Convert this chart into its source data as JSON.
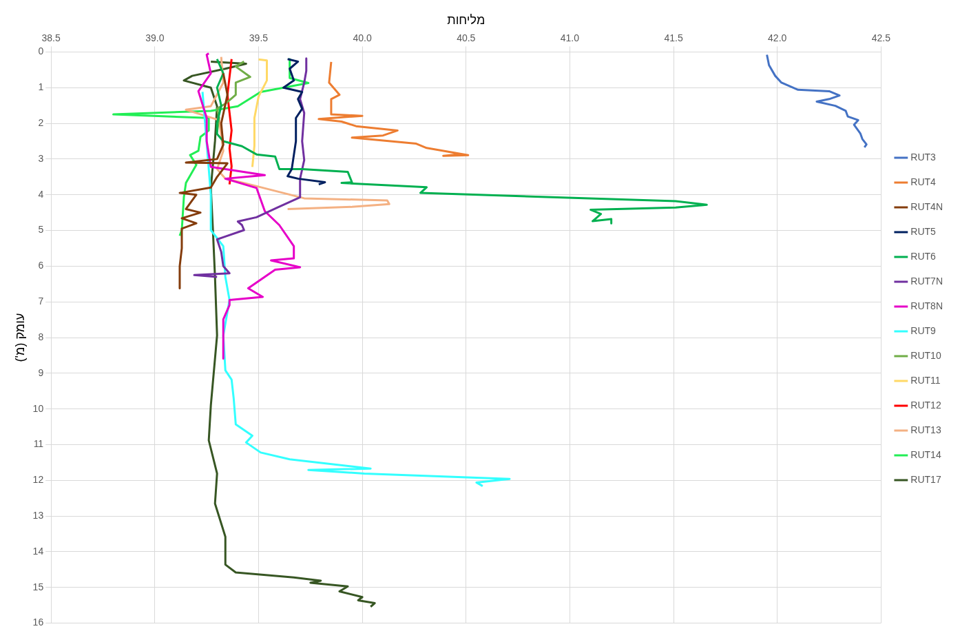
{
  "chart_data": {
    "type": "line",
    "xlabel": "מליחות",
    "ylabel": "עומק (מ')",
    "xlim": [
      38.5,
      42.5
    ],
    "xticks": [
      38.5,
      {
        "value": 39,
        "label": "39.0"
      },
      39.5,
      {
        "value": 40,
        "label": "40.0"
      },
      40.5,
      {
        "value": 41,
        "label": "41.0"
      },
      41.5,
      {
        "value": 42,
        "label": "42.0"
      },
      42.5
    ],
    "ylim": [
      16,
      0
    ],
    "yticks": [
      0,
      1,
      2,
      3,
      4,
      5,
      6,
      7,
      8,
      9,
      10,
      11,
      12,
      13,
      14,
      15,
      16
    ],
    "grid": true,
    "legend": "right",
    "marker": "none",
    "line_style": "solid",
    "series": [
      {
        "name": "RUT3",
        "color": "#4472c4",
        "x": [
          41.95,
          41.96,
          41.99,
          42.02,
          42.1,
          42.25,
          42.3,
          42.25,
          42.19,
          42.28,
          42.33,
          42.34,
          42.39,
          42.37,
          42.4,
          42.41,
          42.43,
          42.42
        ],
        "values": [
          0.08,
          0.37,
          0.67,
          0.86,
          1.06,
          1.1,
          1.22,
          1.32,
          1.39,
          1.51,
          1.65,
          1.81,
          1.91,
          2.04,
          2.28,
          2.44,
          2.59,
          2.67
        ]
      },
      {
        "name": "RUT4",
        "color": "#ed7d31",
        "x": [
          39.85,
          39.84,
          39.89,
          39.85,
          39.85,
          40.0,
          39.79,
          39.9,
          39.97,
          40.17,
          40.1,
          39.95,
          40.26,
          40.31,
          40.51,
          40.39,
          40.46
        ],
        "values": [
          0.28,
          0.86,
          1.2,
          1.32,
          1.75,
          1.79,
          1.88,
          1.95,
          2.08,
          2.2,
          2.34,
          2.4,
          2.57,
          2.69,
          2.89,
          2.91,
          2.87
        ]
      },
      {
        "name": "RUT4N",
        "color": "#843c0c",
        "x": [
          39.33,
          39.35,
          39.32,
          39.33,
          39.3,
          39.15,
          39.35,
          39.3,
          39.27,
          39.12,
          39.2,
          39.15,
          39.22,
          39.13,
          39.2,
          39.13,
          39.13,
          39.12,
          39.12
        ],
        "values": [
          0.6,
          1.2,
          2.0,
          2.6,
          3.0,
          3.1,
          3.12,
          3.5,
          3.8,
          3.95,
          4.0,
          4.4,
          4.5,
          4.66,
          4.8,
          4.95,
          5.5,
          6.0,
          6.62
        ]
      },
      {
        "name": "RUT5",
        "color": "#002060",
        "x": [
          39.64,
          39.69,
          39.65,
          39.67,
          39.62,
          39.71,
          39.69,
          39.71,
          39.68,
          39.68,
          39.66,
          39.64,
          39.69,
          39.82,
          39.79
        ],
        "values": [
          0.2,
          0.27,
          0.47,
          0.8,
          1.0,
          1.12,
          1.32,
          1.59,
          1.85,
          2.5,
          3.28,
          3.48,
          3.55,
          3.65,
          3.71
        ]
      },
      {
        "name": "RUT6",
        "color": "#00b050",
        "x": [
          39.3,
          39.33,
          39.3,
          39.32,
          39.3,
          39.3,
          39.33,
          39.42,
          39.49,
          39.58,
          39.6,
          39.71,
          39.93,
          39.95,
          39.9,
          40.31,
          40.28,
          41.51,
          41.66,
          41.51,
          41.1,
          41.15,
          41.11,
          41.2,
          41.2
        ],
        "values": [
          0.2,
          0.6,
          1.0,
          1.5,
          2.0,
          2.3,
          2.5,
          2.64,
          2.87,
          2.93,
          3.28,
          3.28,
          3.36,
          3.65,
          3.67,
          3.79,
          3.95,
          4.18,
          4.28,
          4.36,
          4.42,
          4.54,
          4.74,
          4.68,
          4.8
        ]
      },
      {
        "name": "RUT7N",
        "color": "#7030a0",
        "x": [
          39.73,
          39.73,
          39.72,
          39.7,
          39.72,
          39.71,
          39.72,
          39.7,
          39.7,
          39.59,
          39.49,
          39.4,
          39.42,
          39.43,
          39.33,
          39.3,
          39.32,
          39.33,
          39.36,
          39.19,
          39.3
        ],
        "values": [
          0.18,
          0.53,
          0.86,
          1.32,
          1.71,
          2.5,
          3.03,
          3.55,
          4.07,
          4.36,
          4.63,
          4.75,
          4.85,
          4.99,
          5.19,
          5.25,
          5.6,
          6.0,
          6.2,
          6.25,
          6.3
        ]
      },
      {
        "name": "RUT8N",
        "color": "#e600c8",
        "x": [
          39.26,
          39.25,
          39.27,
          39.21,
          39.25,
          39.25,
          39.27,
          39.53,
          39.34,
          39.49,
          39.53,
          39.6,
          39.67,
          39.67,
          39.56,
          39.7,
          39.58,
          39.45,
          39.52,
          39.36,
          39.36,
          39.33,
          39.33
        ],
        "values": [
          0.04,
          0.08,
          0.6,
          1.1,
          1.85,
          2.5,
          3.22,
          3.45,
          3.55,
          3.81,
          4.46,
          4.85,
          5.44,
          5.78,
          5.84,
          6.03,
          6.1,
          6.62,
          6.86,
          6.95,
          7.09,
          7.49,
          8.59
        ]
      },
      {
        "name": "RUT9",
        "color": "#33ffff",
        "x": [
          39.23,
          39.27,
          39.27,
          39.33,
          39.34,
          39.36,
          39.33,
          39.34,
          39.37,
          39.38,
          39.39,
          39.47,
          39.44,
          39.51,
          39.65,
          40.04,
          39.74,
          40.01,
          40.71,
          40.55,
          40.58
        ],
        "values": [
          1.12,
          4.0,
          4.99,
          5.44,
          6.3,
          6.95,
          7.94,
          8.92,
          9.18,
          9.7,
          10.43,
          10.75,
          10.94,
          11.22,
          11.41,
          11.67,
          11.71,
          11.81,
          11.96,
          12.06,
          12.16
        ]
      },
      {
        "name": "RUT10",
        "color": "#70ad47",
        "x": [
          39.43,
          39.39,
          39.46,
          39.39,
          39.39,
          39.34,
          39.3,
          39.31,
          39.3
        ],
        "values": [
          0.27,
          0.41,
          0.7,
          0.86,
          1.2,
          1.45,
          1.59,
          1.85,
          2.24
        ]
      },
      {
        "name": "RUT11",
        "color": "#ffd966",
        "x": [
          39.5,
          39.54,
          39.54,
          39.5,
          39.48,
          39.48,
          39.47
        ],
        "values": [
          0.21,
          0.24,
          0.8,
          1.25,
          1.85,
          2.63,
          3.22
        ]
      },
      {
        "name": "RUT12",
        "color": "#ff0000",
        "x": [
          39.37,
          39.36,
          39.35,
          39.36,
          39.37,
          39.36,
          39.37,
          39.36
        ],
        "values": [
          0.2,
          0.7,
          1.2,
          1.7,
          2.2,
          2.7,
          3.2,
          3.71
        ]
      },
      {
        "name": "RUT13",
        "color": "#f4b183",
        "x": [
          39.32,
          39.33,
          39.27,
          39.15,
          39.31,
          39.33,
          39.3,
          39.34,
          39.43,
          39.72,
          40.12,
          40.13,
          39.95,
          39.64
        ],
        "values": [
          0.14,
          0.86,
          1.52,
          1.62,
          1.91,
          2.77,
          3.28,
          3.55,
          3.67,
          4.1,
          4.16,
          4.26,
          4.34,
          4.4
        ]
      },
      {
        "name": "RUT14",
        "color": "#22ee55",
        "x": [
          39.65,
          39.65,
          39.74,
          39.51,
          39.4,
          39.27,
          38.8,
          39.26,
          39.26,
          39.22,
          39.21,
          39.17,
          39.2,
          39.15,
          39.14,
          39.13,
          39.12
        ],
        "values": [
          0.2,
          0.73,
          0.87,
          1.12,
          1.52,
          1.65,
          1.75,
          1.85,
          2.2,
          2.38,
          2.77,
          2.89,
          3.16,
          3.67,
          4.07,
          4.99,
          5.15
        ]
      },
      {
        "name": "RUT17",
        "color": "#375623",
        "x": [
          39.27,
          39.44,
          39.34,
          39.18,
          39.14,
          39.27,
          39.3,
          39.29,
          39.27,
          39.28,
          39.29,
          39.3,
          39.27,
          39.26,
          39.3,
          39.29,
          39.34,
          39.34,
          39.39,
          39.67,
          39.8,
          39.75,
          39.93,
          39.89,
          40.0,
          39.98,
          40.06,
          40.04
        ],
        "values": [
          0.27,
          0.33,
          0.47,
          0.67,
          0.8,
          1.0,
          1.52,
          2.5,
          3.81,
          4.99,
          6.3,
          7.94,
          9.9,
          10.88,
          11.81,
          12.65,
          13.58,
          14.36,
          14.58,
          14.72,
          14.81,
          14.87,
          14.97,
          15.11,
          15.27,
          15.36,
          15.44,
          15.54
        ]
      }
    ]
  }
}
